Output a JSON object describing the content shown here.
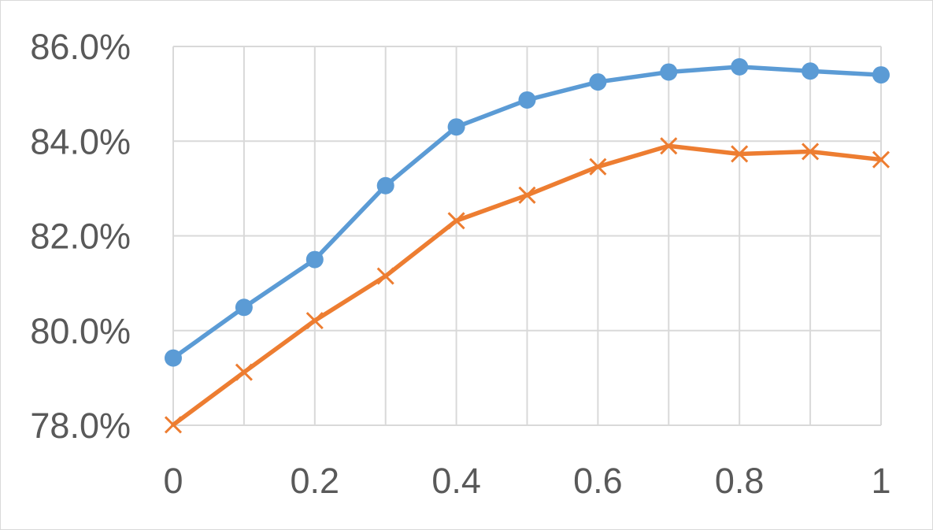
{
  "chart_data": {
    "type": "line",
    "title": "",
    "xlabel": "",
    "ylabel": "",
    "x": [
      0,
      0.1,
      0.2,
      0.3,
      0.4,
      0.5,
      0.6,
      0.7,
      0.8,
      0.9,
      1
    ],
    "xlim": [
      0,
      1
    ],
    "ylim": [
      0.78,
      0.86
    ],
    "x_ticks": [
      0,
      0.2,
      0.4,
      0.6,
      0.8,
      1
    ],
    "x_tick_labels": [
      "0",
      "0.2",
      "0.4",
      "0.6",
      "0.8",
      "1"
    ],
    "y_ticks": [
      0.78,
      0.8,
      0.82,
      0.84,
      0.86
    ],
    "y_tick_labels": [
      "78.0%",
      "80.0%",
      "82.0%",
      "84.0%",
      "86.0%"
    ],
    "grid": true,
    "legend": "none",
    "series": [
      {
        "color": "#5b9bd5",
        "marker": "circle",
        "values": [
          0.7942,
          0.8049,
          0.815,
          0.8306,
          0.843,
          0.8487,
          0.8525,
          0.8546,
          0.8557,
          0.8548,
          0.854
        ]
      },
      {
        "color": "#ed7d31",
        "marker": "x",
        "values": [
          0.7801,
          0.7912,
          0.8021,
          0.8115,
          0.8232,
          0.8286,
          0.8346,
          0.839,
          0.8373,
          0.8378,
          0.8361
        ]
      }
    ]
  }
}
